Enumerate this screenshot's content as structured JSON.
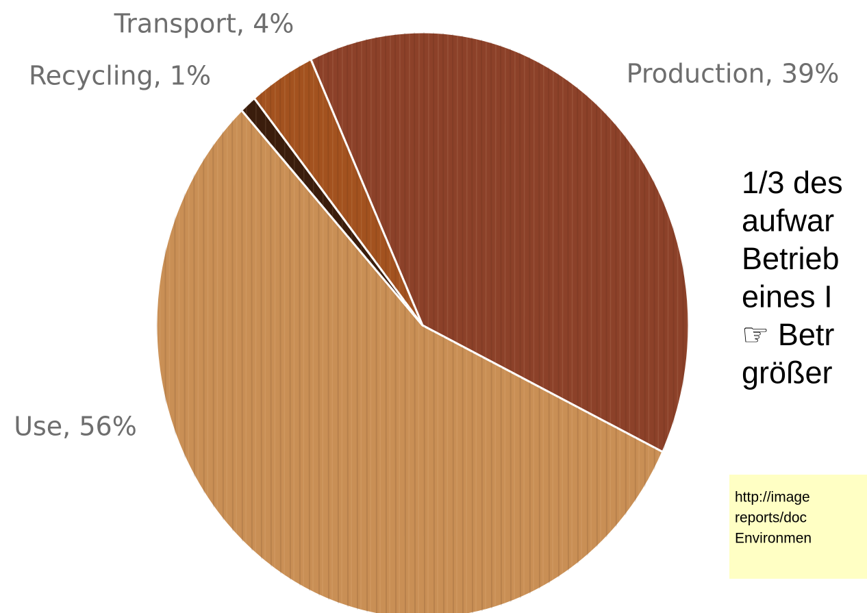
{
  "chart_data": {
    "type": "pie",
    "categories": [
      "Production",
      "Use",
      "Recycling",
      "Transport"
    ],
    "values": [
      39,
      56,
      1,
      4
    ],
    "value_labels": [
      "Production, 39%",
      "Use, 56%",
      "Recycling, 1%",
      "Transport, 4%"
    ],
    "colors": [
      "#8c4129",
      "#c98f55",
      "#3a1d0c",
      "#a3521f"
    ]
  },
  "annotation": {
    "lines": [
      "1/3 des",
      "aufwar",
      "Betrieb",
      "eines I",
      "☞ Betr",
      "größer"
    ],
    "source": [
      "http://image",
      "reports/doc",
      "Environmen"
    ]
  }
}
